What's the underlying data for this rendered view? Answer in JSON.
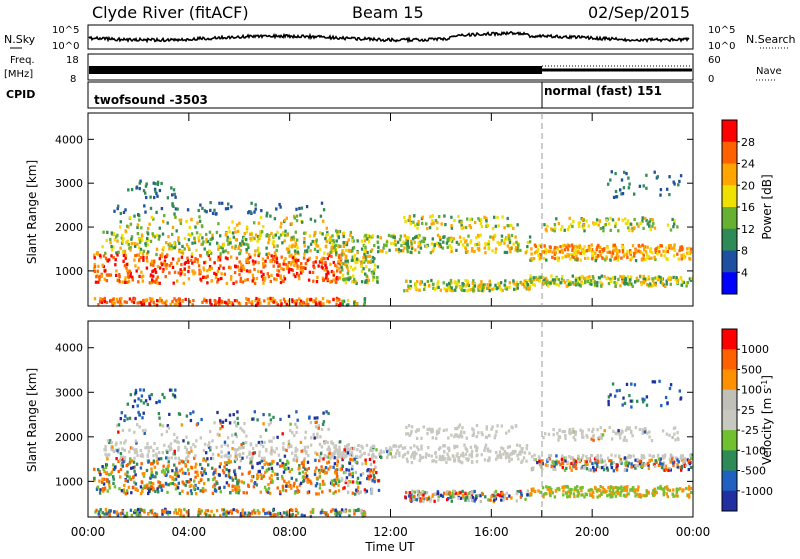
{
  "header": {
    "title": "Clyde River (fitACF)",
    "beam": "Beam 15",
    "date": "02/Sep/2015"
  },
  "top_panels": {
    "nsky_label": "N.Sky",
    "nsearch_label": "N.Search",
    "noise_ticks": [
      "10^5",
      "10^0"
    ],
    "freq_label_1": "Freq.",
    "freq_label_2": "[MHz]",
    "freq_ticks": [
      "18",
      "8"
    ],
    "nave_ticks": [
      "60",
      "0"
    ],
    "nave_label": "Nave",
    "cpid_label": "CPID",
    "cpid_segments": [
      {
        "label": "twofsound -3503",
        "start_hour": 0,
        "end_hour": 18.0
      },
      {
        "label": "normal (fast) 151",
        "start_hour": 18.0,
        "end_hour": 24
      }
    ]
  },
  "colors": {
    "power_scale": [
      "#0000ff",
      "#1f4fa0",
      "#2e8b57",
      "#66b032",
      "#f0e000",
      "#ffa500",
      "#ff6000",
      "#ff0000"
    ],
    "velocity_scale": [
      "#2030a0",
      "#2060c0",
      "#2e8b57",
      "#70c030",
      "#c8c8c0",
      "#c0c0b8",
      "#ff9000",
      "#ff6000",
      "#ff0000"
    ],
    "ground_scatter": "#b0b0a8"
  },
  "chart_data": [
    {
      "type": "heatmap",
      "name": "power",
      "ylabel": "Slant Range [km]",
      "yticks": [
        "1000",
        "2000",
        "3000",
        "4000"
      ],
      "ylim": [
        200,
        4600
      ],
      "xlim": [
        0,
        24
      ],
      "colorbar_label": "Power [dB]",
      "colorbar_ticks": [
        "4",
        "8",
        "12",
        "16",
        "20",
        "24",
        "28"
      ],
      "colorbar_range": [
        0,
        32
      ],
      "dashed_marker_hour": 18.0
    },
    {
      "type": "heatmap",
      "name": "velocity",
      "ylabel": "Slant Range [km]",
      "yticks": [
        "1000",
        "2000",
        "3000",
        "4000"
      ],
      "ylim": [
        200,
        4600
      ],
      "xlim": [
        0,
        24
      ],
      "xticks": [
        "00:00",
        "04:00",
        "08:00",
        "12:00",
        "16:00",
        "20:00",
        "00:00"
      ],
      "xlabel": "Time UT",
      "colorbar_label": "Velocity [m s",
      "colorbar_label_sup": "-1",
      "colorbar_label_end": "]",
      "colorbar_ticks": [
        "1000",
        "500",
        "100",
        "25",
        "-25",
        "-100",
        "-500",
        "-1000"
      ],
      "dashed_marker_hour": 18.0
    }
  ]
}
